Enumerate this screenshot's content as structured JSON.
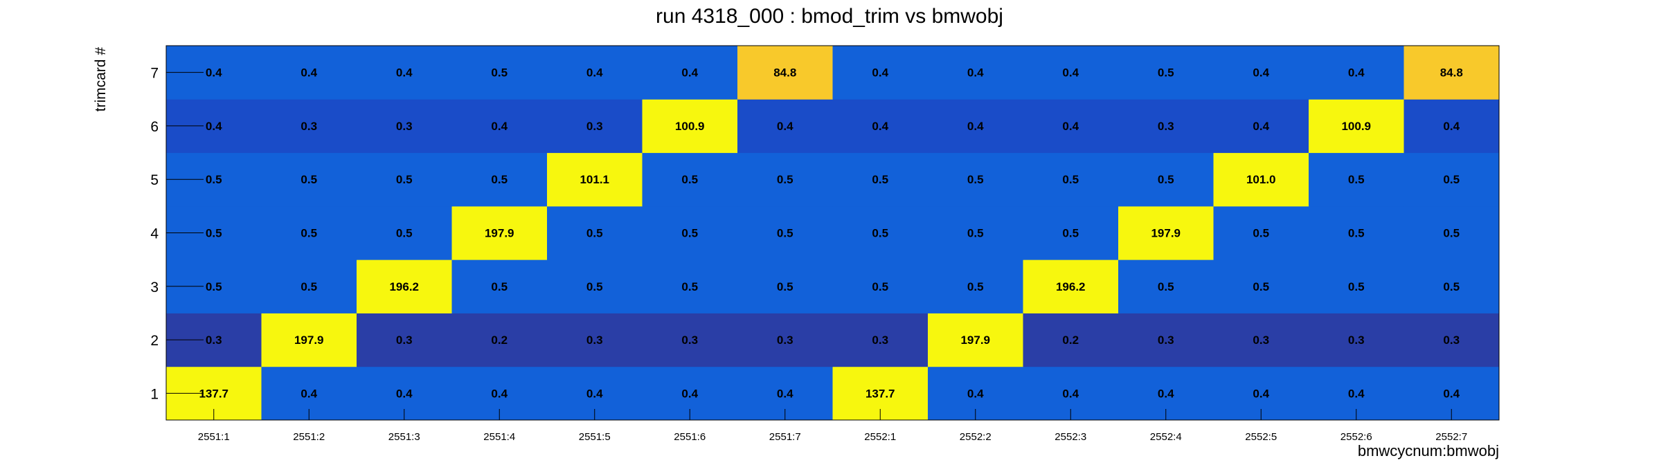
{
  "chart_data": {
    "type": "heatmap",
    "title": "run 4318_000 : bmod_trim vs bmwobj",
    "xlabel": "bmwcycnum:bmwobj",
    "ylabel": "trimcard #",
    "x_categories": [
      "2551:1",
      "2551:2",
      "2551:3",
      "2551:4",
      "2551:5",
      "2551:6",
      "2551:7",
      "2552:1",
      "2552:2",
      "2552:3",
      "2552:4",
      "2552:5",
      "2552:6",
      "2552:7"
    ],
    "y_categories": [
      "1",
      "2",
      "3",
      "4",
      "5",
      "6",
      "7"
    ],
    "values": [
      [
        "137.7",
        "0.4",
        "0.4",
        "0.4",
        "0.4",
        "0.4",
        "0.4",
        "137.7",
        "0.4",
        "0.4",
        "0.4",
        "0.4",
        "0.4",
        "0.4"
      ],
      [
        "0.3",
        "197.9",
        "0.3",
        "0.2",
        "0.3",
        "0.3",
        "0.3",
        "0.3",
        "197.9",
        "0.2",
        "0.3",
        "0.3",
        "0.3",
        "0.3"
      ],
      [
        "0.5",
        "0.5",
        "196.2",
        "0.5",
        "0.5",
        "0.5",
        "0.5",
        "0.5",
        "0.5",
        "196.2",
        "0.5",
        "0.5",
        "0.5",
        "0.5"
      ],
      [
        "0.5",
        "0.5",
        "0.5",
        "197.9",
        "0.5",
        "0.5",
        "0.5",
        "0.5",
        "0.5",
        "0.5",
        "197.9",
        "0.5",
        "0.5",
        "0.5"
      ],
      [
        "0.5",
        "0.5",
        "0.5",
        "0.5",
        "101.1",
        "0.5",
        "0.5",
        "0.5",
        "0.5",
        "0.5",
        "0.5",
        "101.0",
        "0.5",
        "0.5"
      ],
      [
        "0.4",
        "0.3",
        "0.3",
        "0.4",
        "0.3",
        "100.9",
        "0.4",
        "0.4",
        "0.4",
        "0.4",
        "0.3",
        "0.4",
        "100.9",
        "0.4"
      ],
      [
        "0.4",
        "0.4",
        "0.4",
        "0.5",
        "0.4",
        "0.4",
        "84.8",
        "0.4",
        "0.4",
        "0.4",
        "0.5",
        "0.4",
        "0.4",
        "84.8"
      ]
    ],
    "colors": {
      "low": "#1261d9",
      "row_2_background": "#2a3ea6",
      "row_6_background": "#1a4cc8",
      "high": "#f7f70e",
      "mid_high": "#f8c92b",
      "text": "#000000"
    },
    "grid": false
  }
}
